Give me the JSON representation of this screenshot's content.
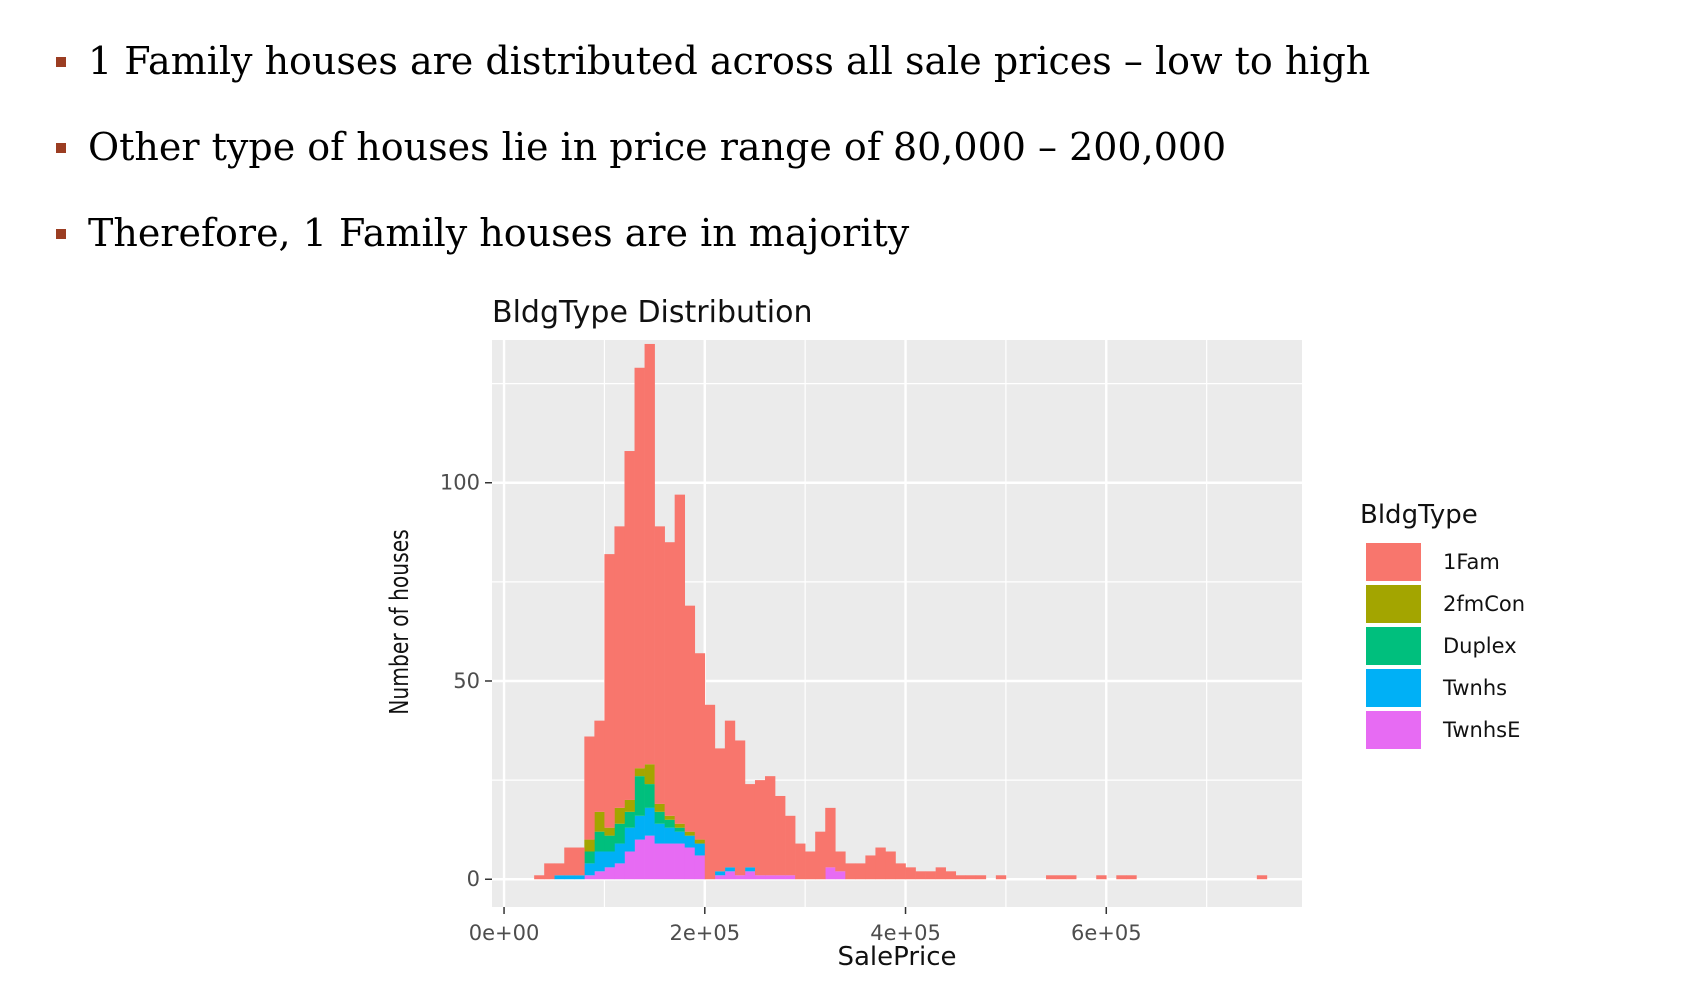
{
  "bullets": [
    "1 Family houses are distributed across all sale prices – low to high",
    "Other type of houses lie in price range of 80,000 – 200,000",
    "Therefore, 1 Family houses are in majority"
  ],
  "colors": {
    "bullet_marker": "#9b3d22",
    "panel": "#ebebeb",
    "grid": "#ffffff"
  },
  "chart_data": {
    "type": "bar",
    "stacked": true,
    "title": "BldgType Distribution",
    "xlabel": "SalePrice",
    "ylabel": "Number of houses",
    "xlim": [
      -12000,
      795000
    ],
    "ylim": [
      -7,
      136
    ],
    "x_ticks": [
      0,
      200000,
      400000,
      600000
    ],
    "x_tick_labels": [
      "0e+00",
      "2e+05",
      "4e+05",
      "6e+05"
    ],
    "y_ticks": [
      0,
      50,
      100
    ],
    "y_tick_labels": [
      "0",
      "50",
      "100"
    ],
    "bin_width": 10000,
    "bin_starts": [
      30000,
      40000,
      50000,
      60000,
      70000,
      80000,
      90000,
      100000,
      110000,
      120000,
      130000,
      140000,
      150000,
      160000,
      170000,
      180000,
      190000,
      200000,
      210000,
      220000,
      230000,
      240000,
      250000,
      260000,
      270000,
      280000,
      290000,
      300000,
      310000,
      320000,
      330000,
      340000,
      350000,
      360000,
      370000,
      380000,
      390000,
      400000,
      410000,
      420000,
      430000,
      440000,
      450000,
      460000,
      470000,
      480000,
      490000,
      500000,
      510000,
      520000,
      530000,
      540000,
      550000,
      560000,
      570000,
      580000,
      590000,
      600000,
      610000,
      620000,
      630000,
      640000,
      650000,
      660000,
      670000,
      680000,
      690000,
      700000,
      710000,
      720000,
      730000,
      740000,
      750000
    ],
    "legend_title": "BldgType",
    "legend_position": "right",
    "series": [
      {
        "name": "TwnhsE",
        "color": "#e76bf3",
        "values": [
          0,
          0,
          0,
          0,
          0,
          1,
          2,
          3,
          4,
          7,
          10,
          11,
          9,
          9,
          9,
          8,
          6,
          0,
          1,
          2,
          1,
          2,
          1,
          1,
          1,
          1,
          0,
          0,
          0,
          3,
          2,
          0,
          0,
          0,
          0,
          0,
          0,
          0,
          0,
          0,
          0,
          0,
          0,
          0,
          0,
          0,
          0,
          0,
          0,
          0,
          0,
          0,
          0,
          0,
          0,
          0,
          0,
          0,
          0,
          0,
          0,
          0,
          0,
          0,
          0,
          0,
          0,
          0,
          0,
          0,
          0,
          0,
          0
        ]
      },
      {
        "name": "Twnhs",
        "color": "#00b0f6",
        "values": [
          0,
          0,
          1,
          1,
          1,
          3,
          5,
          4,
          5,
          6,
          6,
          7,
          5,
          4,
          3,
          3,
          3,
          0,
          1,
          1,
          0,
          1,
          0,
          0,
          0,
          0,
          0,
          0,
          0,
          0,
          0,
          0,
          0,
          0,
          0,
          0,
          0,
          0,
          0,
          0,
          0,
          0,
          0,
          0,
          0,
          0,
          0,
          0,
          0,
          0,
          0,
          0,
          0,
          0,
          0,
          0,
          0,
          0,
          0,
          0,
          0,
          0,
          0,
          0,
          0,
          0,
          0,
          0,
          0,
          0,
          0,
          0,
          0
        ]
      },
      {
        "name": "Duplex",
        "color": "#00bf7d",
        "values": [
          0,
          0,
          0,
          0,
          0,
          3,
          5,
          4,
          5,
          4,
          10,
          6,
          3,
          2,
          1,
          0,
          0,
          0,
          0,
          0,
          0,
          0,
          0,
          0,
          0,
          0,
          0,
          0,
          0,
          0,
          0,
          0,
          0,
          0,
          0,
          0,
          0,
          0,
          0,
          0,
          0,
          0,
          0,
          0,
          0,
          0,
          0,
          0,
          0,
          0,
          0,
          0,
          0,
          0,
          0,
          0,
          0,
          0,
          0,
          0,
          0,
          0,
          0,
          0,
          0,
          0,
          0,
          0,
          0,
          0,
          0,
          0,
          0
        ]
      },
      {
        "name": "2fmCon",
        "color": "#a3a500",
        "values": [
          0,
          0,
          0,
          0,
          0,
          3,
          5,
          2,
          4,
          3,
          2,
          5,
          2,
          1,
          1,
          1,
          1,
          0,
          0,
          0,
          0,
          0,
          0,
          0,
          0,
          0,
          0,
          0,
          0,
          0,
          0,
          0,
          0,
          0,
          0,
          0,
          0,
          0,
          0,
          0,
          0,
          0,
          0,
          0,
          0,
          0,
          0,
          0,
          0,
          0,
          0,
          0,
          0,
          0,
          0,
          0,
          0,
          0,
          0,
          0,
          0,
          0,
          0,
          0,
          0,
          0,
          0,
          0,
          0,
          0,
          0,
          0,
          0
        ]
      },
      {
        "name": "1Fam",
        "color": "#f8766d",
        "values": [
          1,
          4,
          3,
          7,
          7,
          26,
          23,
          69,
          71,
          88,
          101,
          106,
          70,
          69,
          83,
          57,
          47,
          44,
          31,
          37,
          34,
          21,
          24,
          25,
          20,
          15,
          9,
          7,
          12,
          15,
          5,
          4,
          4,
          6,
          8,
          7,
          4,
          3,
          2,
          2,
          3,
          2,
          1,
          1,
          1,
          0,
          1,
          0,
          0,
          0,
          0,
          1,
          1,
          1,
          0,
          0,
          1,
          0,
          1,
          1,
          0,
          0,
          0,
          0,
          0,
          0,
          0,
          0,
          0,
          0,
          0,
          0,
          1
        ]
      }
    ]
  }
}
